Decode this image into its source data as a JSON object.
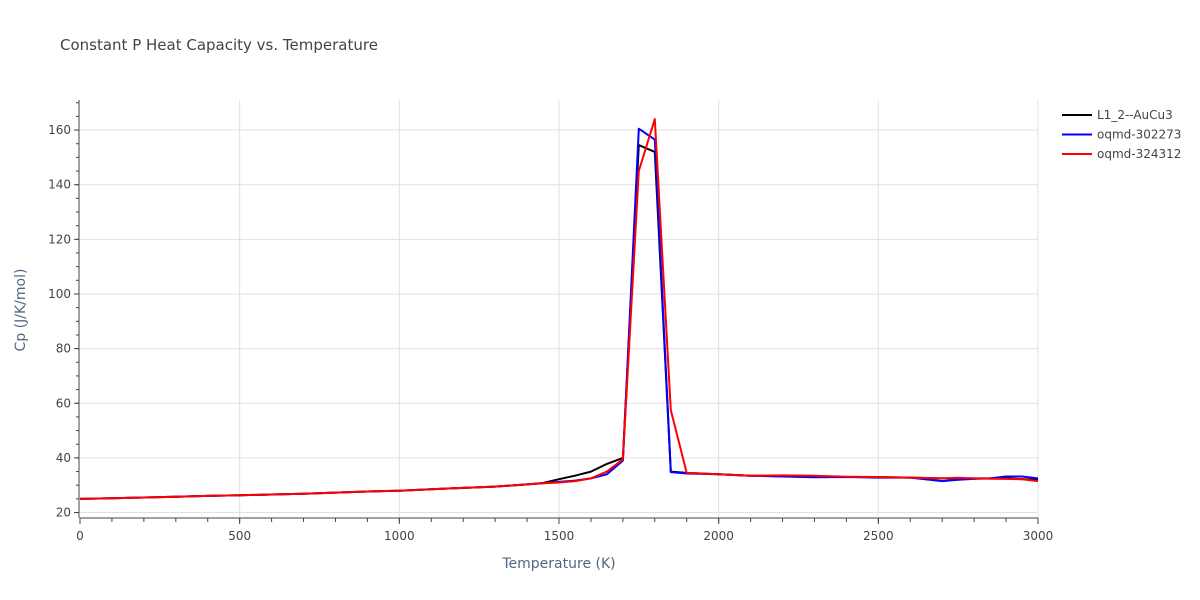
{
  "chart_data": {
    "type": "line",
    "title": "Constant P Heat Capacity vs. Temperature",
    "xlabel": "Temperature (K)",
    "ylabel": "Cp (J/K/mol)",
    "xlim": [
      0,
      3000
    ],
    "ylim": [
      18,
      171
    ],
    "xticks": [
      0,
      500,
      1000,
      1500,
      2000,
      2500,
      3000
    ],
    "yticks": [
      20,
      40,
      60,
      80,
      100,
      120,
      140,
      160
    ],
    "grid": true,
    "legend_position": "top-right",
    "series": [
      {
        "name": "L1_2--AuCu3",
        "color": "#000000",
        "x": [
          0,
          100,
          200,
          300,
          400,
          500,
          600,
          700,
          800,
          900,
          1000,
          1100,
          1200,
          1300,
          1400,
          1450,
          1500,
          1550,
          1600,
          1650,
          1700,
          1750,
          1800,
          1850,
          1900,
          2000,
          2100,
          2200,
          2300,
          2400,
          2500,
          2600,
          2700,
          2800,
          2900,
          3000
        ],
        "y": [
          25.0,
          25.2,
          25.5,
          25.8,
          26.1,
          26.3,
          26.6,
          26.9,
          27.3,
          27.7,
          28.0,
          28.5,
          29.0,
          29.5,
          30.3,
          30.8,
          32.2,
          33.5,
          35.0,
          37.8,
          40.0,
          154.5,
          152.0,
          35.0,
          34.5,
          34.0,
          33.5,
          33.3,
          33.0,
          33.0,
          33.0,
          32.8,
          32.5,
          32.5,
          32.5,
          32.0
        ]
      },
      {
        "name": "oqmd-302273",
        "color": "#0000ff",
        "x": [
          0,
          100,
          200,
          300,
          400,
          500,
          600,
          700,
          800,
          900,
          1000,
          1100,
          1200,
          1300,
          1400,
          1450,
          1500,
          1550,
          1600,
          1650,
          1700,
          1750,
          1800,
          1850,
          1900,
          2000,
          2100,
          2200,
          2300,
          2400,
          2500,
          2600,
          2700,
          2750,
          2800,
          2850,
          2900,
          2950,
          3000
        ],
        "y": [
          25.0,
          25.2,
          25.5,
          25.8,
          26.1,
          26.3,
          26.6,
          26.9,
          27.3,
          27.7,
          28.0,
          28.5,
          29.0,
          29.5,
          30.3,
          30.7,
          31.2,
          31.7,
          32.5,
          34.0,
          39.0,
          160.5,
          156.5,
          34.8,
          34.3,
          34.0,
          33.5,
          33.2,
          32.9,
          33.0,
          32.8,
          32.8,
          31.5,
          32.0,
          32.3,
          32.5,
          33.2,
          33.2,
          32.5
        ]
      },
      {
        "name": "oqmd-324312",
        "color": "#ff0000",
        "x": [
          0,
          100,
          200,
          300,
          400,
          500,
          600,
          700,
          800,
          900,
          1000,
          1100,
          1200,
          1300,
          1400,
          1450,
          1500,
          1550,
          1600,
          1650,
          1700,
          1750,
          1800,
          1850,
          1900,
          2000,
          2100,
          2200,
          2300,
          2400,
          2500,
          2600,
          2700,
          2750,
          2800,
          2850,
          2900,
          2950,
          3000
        ],
        "y": [
          25.0,
          25.2,
          25.5,
          25.8,
          26.1,
          26.3,
          26.6,
          26.9,
          27.3,
          27.7,
          28.0,
          28.5,
          29.0,
          29.5,
          30.3,
          30.7,
          31.0,
          31.5,
          32.5,
          35.0,
          39.5,
          145.0,
          164.0,
          57.5,
          34.5,
          34.0,
          33.5,
          33.6,
          33.5,
          33.1,
          33.0,
          32.8,
          32.5,
          32.7,
          32.5,
          32.4,
          32.3,
          32.2,
          31.5
        ]
      }
    ]
  }
}
